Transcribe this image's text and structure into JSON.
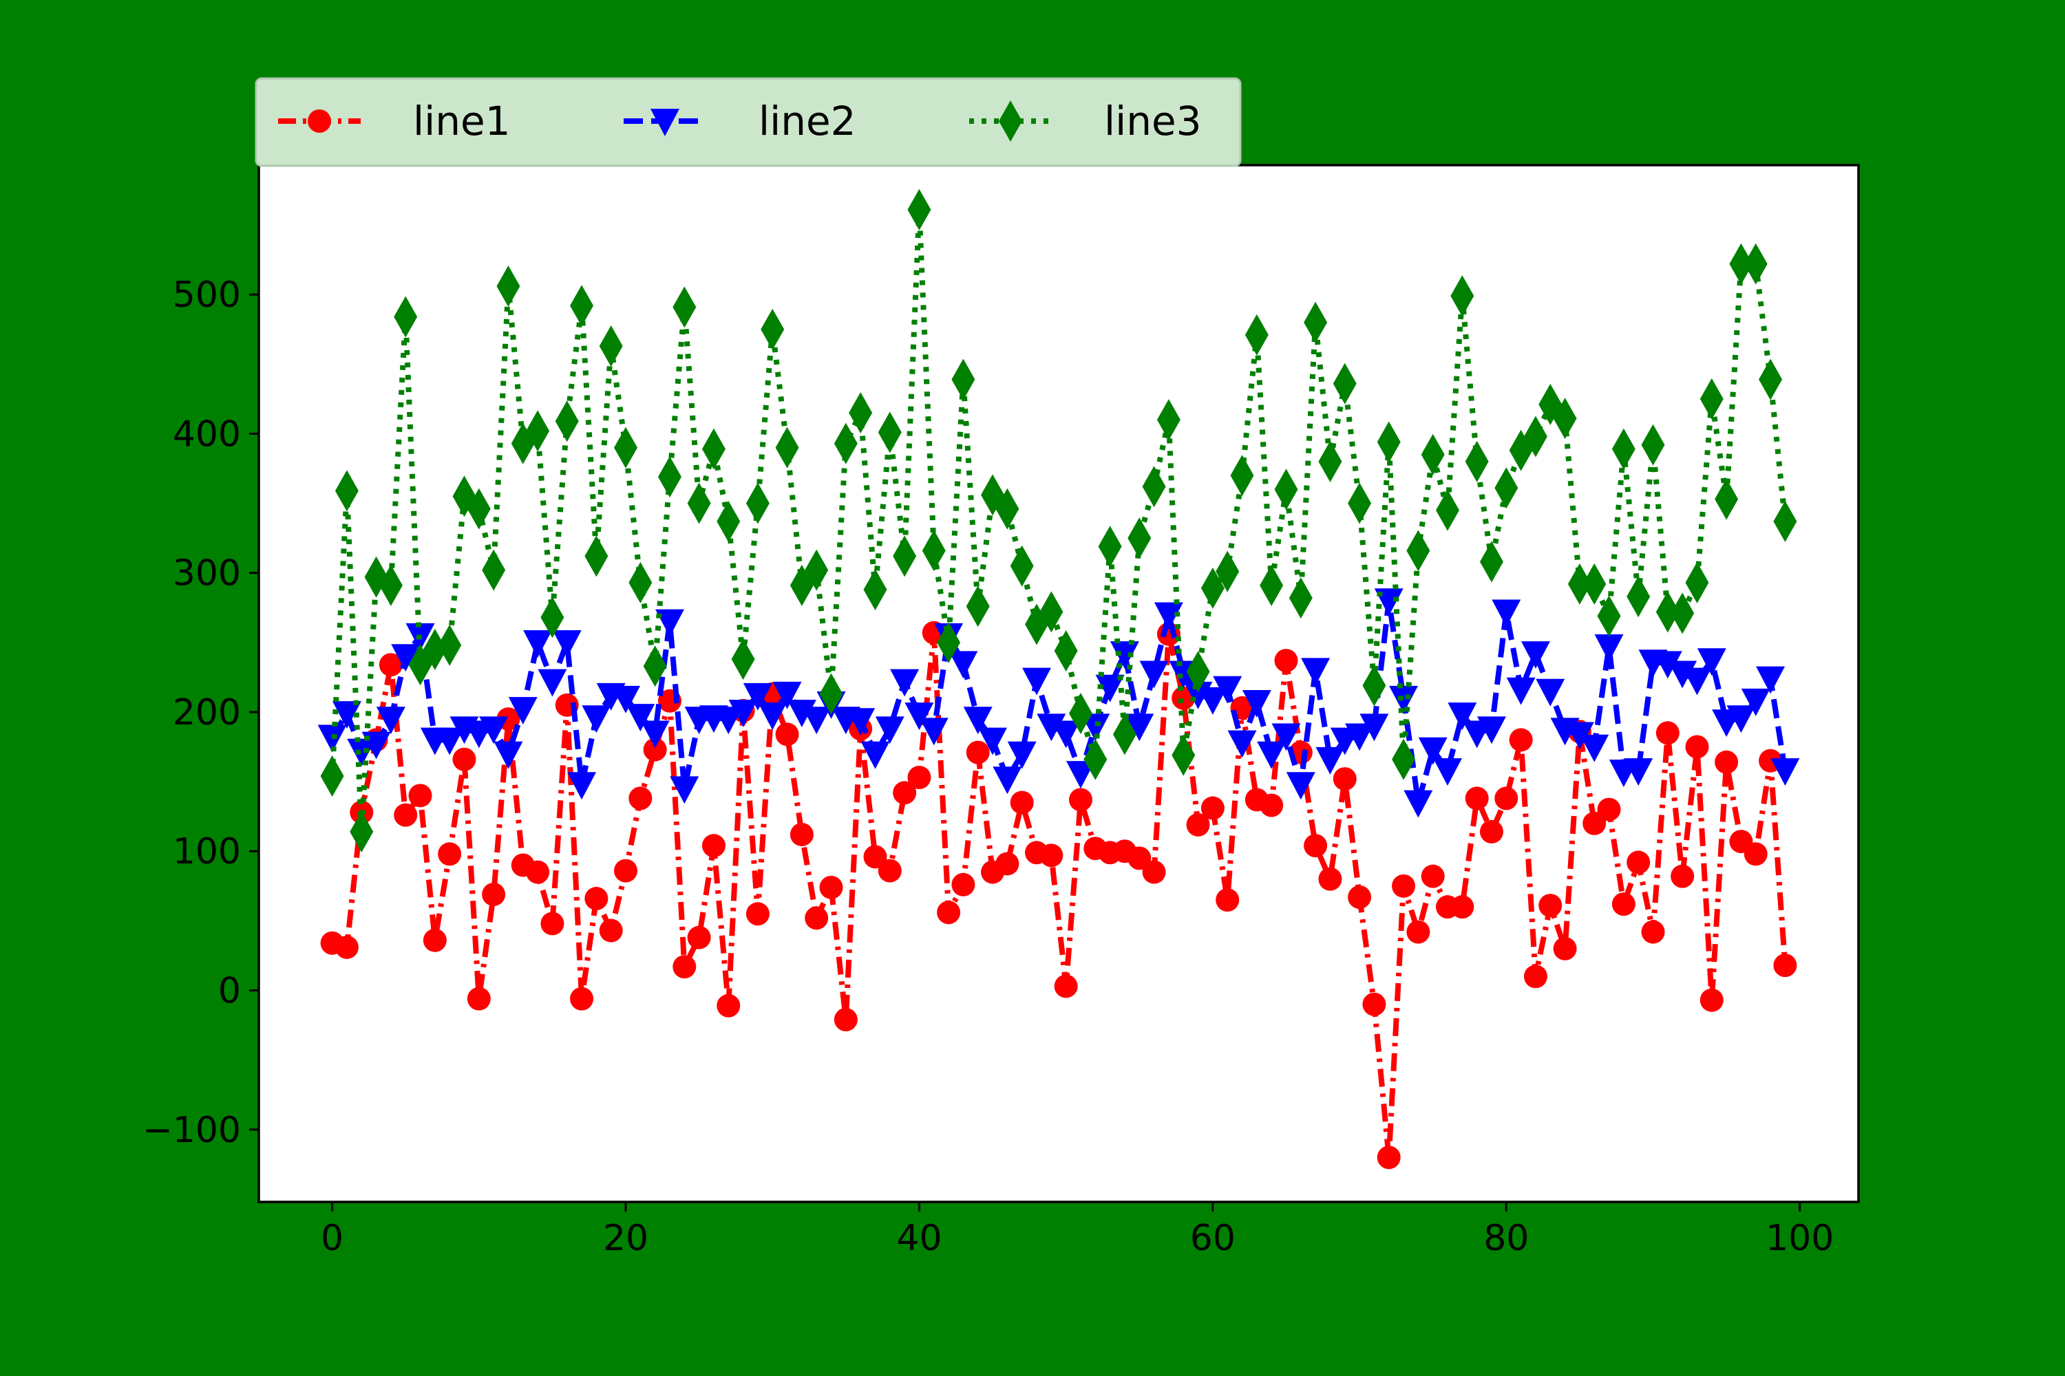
{
  "figure": {
    "background": "#008000"
  },
  "chart_data": {
    "type": "line",
    "title": "",
    "xlabel": "",
    "ylabel": "",
    "xlim": [
      -5,
      104
    ],
    "ylim": [
      -152,
      593
    ],
    "x_ticks": [
      0,
      20,
      40,
      60,
      80,
      100
    ],
    "x_tick_labels": [
      "0",
      "20",
      "40",
      "60",
      "80",
      "100"
    ],
    "y_ticks": [
      -100,
      0,
      100,
      200,
      300,
      400,
      500
    ],
    "y_tick_labels": [
      "−100",
      "0",
      "100",
      "200",
      "300",
      "400",
      "500"
    ],
    "grid": false,
    "legend": {
      "placement": "top-left, above plot",
      "columns": 3,
      "background": "#cce6cc"
    },
    "x": [
      0,
      1,
      2,
      3,
      4,
      5,
      6,
      7,
      8,
      9,
      10,
      11,
      12,
      13,
      14,
      15,
      16,
      17,
      18,
      19,
      20,
      21,
      22,
      23,
      24,
      25,
      26,
      27,
      28,
      29,
      30,
      31,
      32,
      33,
      34,
      35,
      36,
      37,
      38,
      39,
      40,
      41,
      42,
      43,
      44,
      45,
      46,
      47,
      48,
      49,
      50,
      51,
      52,
      53,
      54,
      55,
      56,
      57,
      58,
      59,
      60,
      61,
      62,
      63,
      64,
      65,
      66,
      67,
      68,
      69,
      70,
      71,
      72,
      73,
      74,
      75,
      76,
      77,
      78,
      79,
      80,
      81,
      82,
      83,
      84,
      85,
      86,
      87,
      88,
      89,
      90,
      91,
      92,
      93,
      94,
      95,
      96,
      97,
      98,
      99
    ],
    "series": [
      {
        "name": "line1",
        "color": "#ff0000",
        "marker": "circle",
        "linestyle": "dashdot",
        "values": [
          34,
          31,
          128,
          180,
          234,
          126,
          140,
          36,
          98,
          166,
          -6,
          69,
          195,
          90,
          85,
          48,
          205,
          -6,
          66,
          43,
          86,
          138,
          173,
          208,
          17,
          38,
          104,
          -11,
          201,
          55,
          213,
          184,
          112,
          52,
          74,
          -21,
          188,
          96,
          86,
          142,
          153,
          257,
          56,
          76,
          171,
          85,
          91,
          135,
          99,
          97,
          3,
          137,
          102,
          99,
          100,
          95,
          85,
          256,
          210,
          119,
          131,
          65,
          203,
          137,
          133,
          237,
          171,
          104,
          80,
          152,
          67,
          -10,
          -120,
          75,
          42,
          82,
          60,
          60,
          138,
          114,
          138,
          180,
          10,
          61,
          30,
          186,
          120,
          130,
          62,
          92,
          42,
          185,
          82,
          175,
          -7,
          164,
          107,
          98,
          165,
          18
        ]
      },
      {
        "name": "line2",
        "color": "#0000ff",
        "marker": "triangle-down",
        "linestyle": "dashed",
        "values": [
          182,
          199,
          172,
          177,
          195,
          240,
          255,
          180,
          180,
          188,
          185,
          188,
          170,
          202,
          250,
          222,
          250,
          148,
          196,
          212,
          210,
          197,
          185,
          265,
          145,
          195,
          196,
          195,
          200,
          212,
          198,
          213,
          200,
          195,
          206,
          195,
          194,
          170,
          188,
          222,
          198,
          187,
          255,
          235,
          195,
          180,
          152,
          170,
          223,
          190,
          185,
          156,
          190,
          218,
          242,
          190,
          228,
          270,
          228,
          213,
          209,
          217,
          178,
          207,
          170,
          183,
          148,
          230,
          166,
          180,
          183,
          190,
          280,
          210,
          135,
          173,
          158,
          198,
          185,
          188,
          272,
          216,
          242,
          215,
          187,
          184,
          175,
          247,
          157,
          158,
          236,
          235,
          228,
          223,
          237,
          193,
          196,
          208,
          224,
          158
        ]
      },
      {
        "name": "line3",
        "color": "#008000",
        "marker": "thin-diamond",
        "linestyle": "dotted",
        "values": [
          154,
          359,
          114,
          297,
          291,
          484,
          234,
          245,
          248,
          355,
          346,
          302,
          506,
          393,
          402,
          268,
          409,
          492,
          312,
          463,
          390,
          293,
          233,
          369,
          491,
          350,
          389,
          337,
          238,
          350,
          475,
          390,
          291,
          302,
          213,
          393,
          415,
          288,
          401,
          312,
          561,
          316,
          250,
          439,
          276,
          356,
          346,
          305,
          263,
          272,
          244,
          199,
          166,
          319,
          184,
          325,
          362,
          410,
          169,
          229,
          289,
          301,
          370,
          471,
          291,
          360,
          282,
          480,
          380,
          436,
          350,
          219,
          394,
          166,
          316,
          385,
          345,
          499,
          380,
          308,
          361,
          388,
          398,
          421,
          411,
          292,
          292,
          269,
          389,
          283,
          392,
          272,
          271,
          293,
          425,
          353,
          522,
          522,
          439,
          337
        ]
      }
    ]
  }
}
